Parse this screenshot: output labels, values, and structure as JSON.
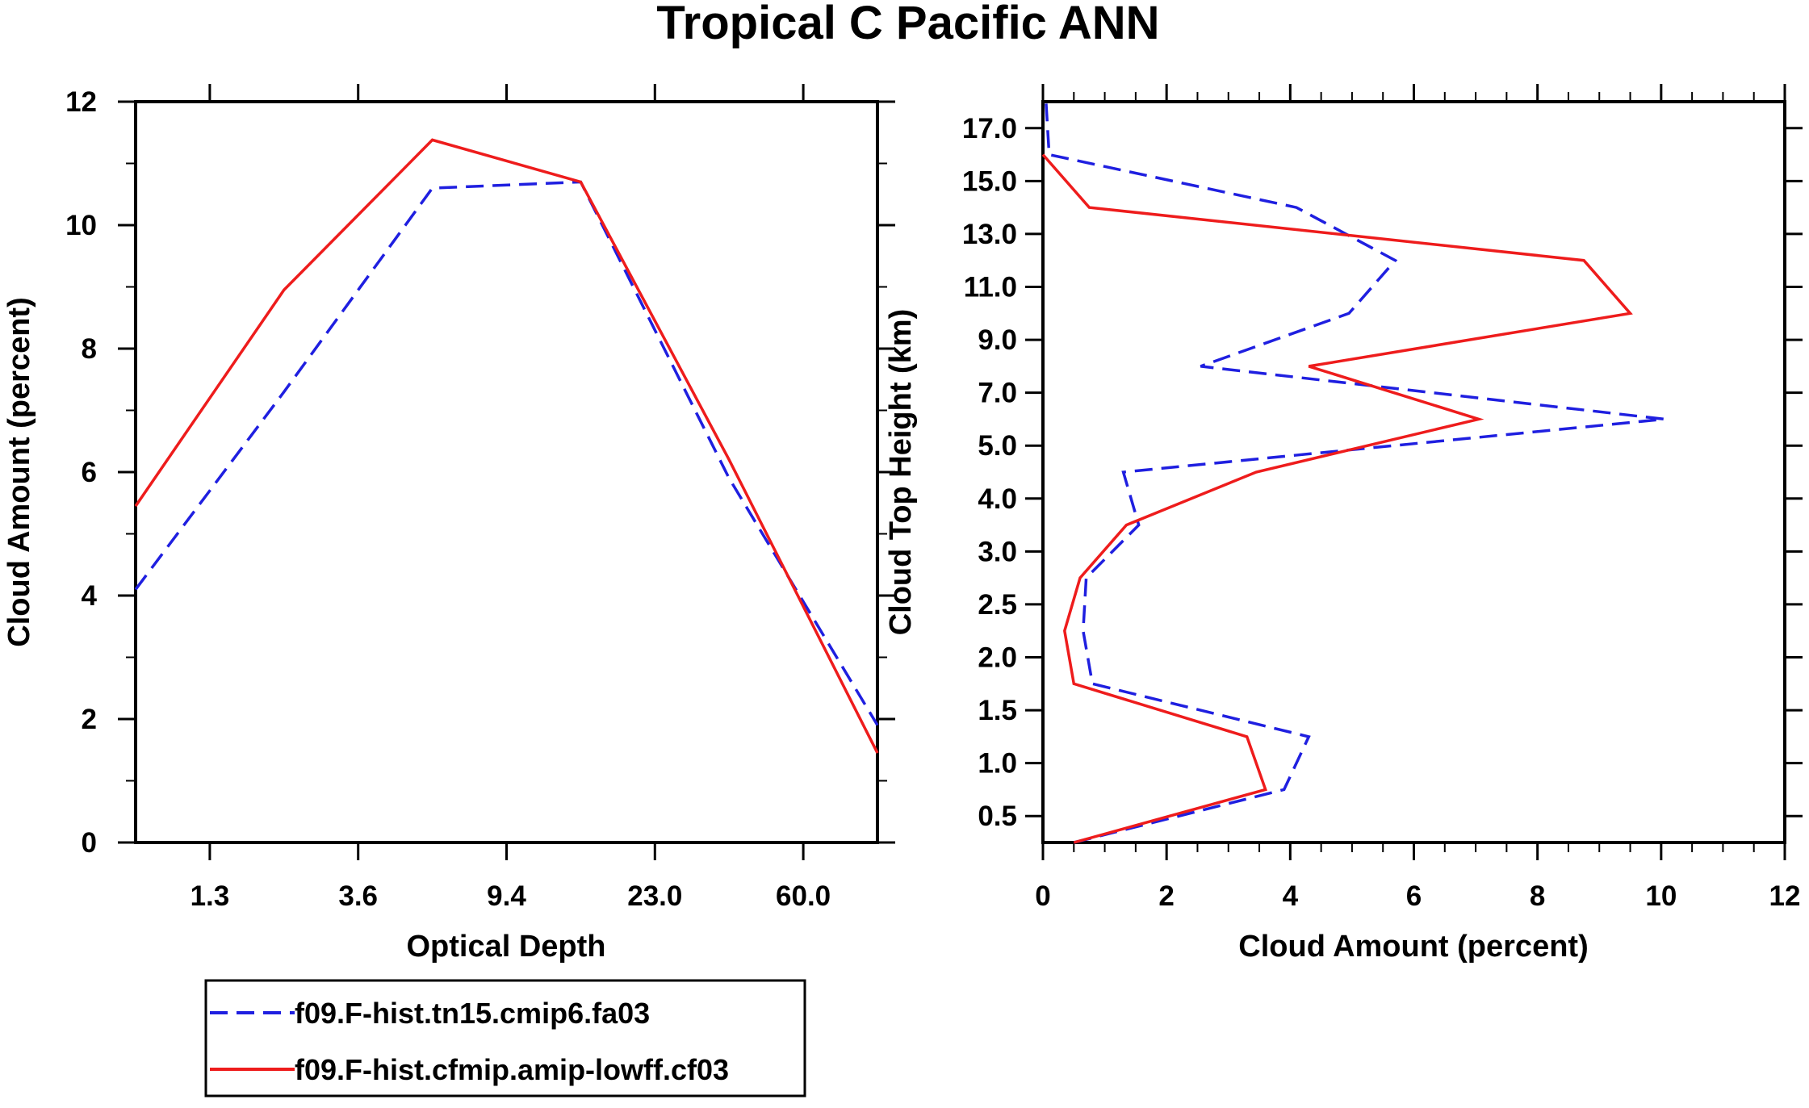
{
  "figure": {
    "title": "Tropical C Pacific ANN",
    "colors": {
      "series_a": "#1f1fe0",
      "series_b": "#ee1c1c",
      "axes": "#000000"
    }
  },
  "legend": {
    "entries": [
      {
        "label": "f09.F-hist.tn15.cmip6.fa03",
        "color": "#1f1fe0",
        "style": "dashed"
      },
      {
        "label": "f09.F-hist.cfmip.amip-lowff.cf03",
        "color": "#ee1c1c",
        "style": "solid"
      }
    ]
  },
  "chart_data": [
    {
      "type": "line",
      "title": "",
      "xlabel": "Optical Depth",
      "ylabel": "Cloud Amount (percent)",
      "x_index": [
        0,
        1,
        2,
        3,
        4,
        5,
        6
      ],
      "x_tick_labels": [
        "1.3",
        "3.6",
        "9.4",
        "23.0",
        "60.0"
      ],
      "x_tick_positions": [
        0.5,
        1.5,
        2.5,
        3.5,
        4.5
      ],
      "xlim": [
        0,
        5
      ],
      "ylim": [
        0,
        12
      ],
      "y_ticks": [
        0,
        2,
        4,
        6,
        8,
        10,
        12
      ],
      "series": [
        {
          "name": "f09.F-hist.tn15.cmip6.fa03",
          "style": "dashed",
          "x": [
            0,
            1,
            2,
            3,
            4,
            5
          ],
          "values": [
            4.1,
            7.3,
            10.6,
            10.7,
            5.9,
            1.9
          ]
        },
        {
          "name": "f09.F-hist.cfmip.amip-lowff.cf03",
          "style": "solid",
          "x": [
            0,
            1,
            2,
            3,
            4,
            5
          ],
          "values": [
            5.45,
            8.95,
            11.38,
            10.7,
            6.2,
            1.45
          ]
        }
      ]
    },
    {
      "type": "line",
      "title": "",
      "xlabel": "Cloud Amount (percent)",
      "ylabel": "Cloud Top Height (km)",
      "xlim": [
        0,
        12
      ],
      "x_ticks": [
        0,
        2,
        4,
        6,
        8,
        10,
        12
      ],
      "y_index_range": [
        0,
        14
      ],
      "y_tick_labels": [
        "0.5",
        "1.0",
        "1.5",
        "2.0",
        "2.5",
        "3.0",
        "4.0",
        "5.0",
        "7.0",
        "9.0",
        "11.0",
        "13.0",
        "15.0",
        "17.0"
      ],
      "y_tick_positions": [
        0.5,
        1.5,
        2.5,
        3.5,
        4.5,
        5.5,
        6.5,
        7.5,
        8.5,
        9.5,
        10.5,
        11.5,
        12.5,
        13.5
      ],
      "series": [
        {
          "name": "f09.F-hist.tn15.cmip6.fa03",
          "style": "dashed",
          "level": [
            0,
            1,
            2,
            3,
            4,
            5,
            6,
            7,
            8,
            9,
            10,
            11,
            12,
            13,
            14
          ],
          "values": [
            0.5,
            3.9,
            4.3,
            0.8,
            0.65,
            0.7,
            1.55,
            1.3,
            10.05,
            2.55,
            4.95,
            5.7,
            4.1,
            0.1,
            0.05
          ]
        },
        {
          "name": "f09.F-hist.cfmip.amip-lowff.cf03",
          "style": "solid",
          "level": [
            0,
            1,
            2,
            3,
            4,
            5,
            6,
            7,
            8,
            9,
            10,
            11,
            12,
            13
          ],
          "values": [
            0.5,
            3.6,
            3.3,
            0.5,
            0.35,
            0.6,
            1.35,
            3.45,
            7.05,
            4.3,
            9.5,
            8.75,
            0.75,
            0.0
          ]
        }
      ]
    }
  ]
}
